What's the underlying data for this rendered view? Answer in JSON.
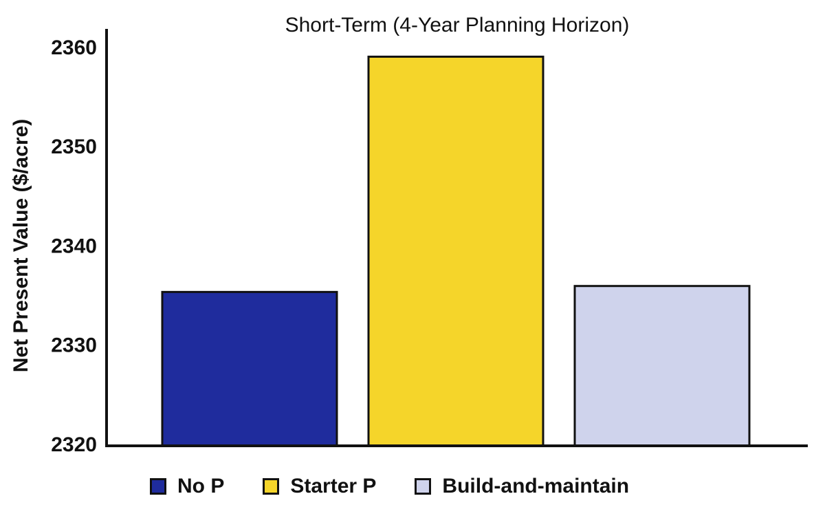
{
  "chart_data": {
    "type": "bar",
    "title": "Short-Term (4-Year Planning Horizon)",
    "xlabel": "",
    "ylabel": "Net Present Value ($/acre)",
    "ylim": [
      2320,
      2362
    ],
    "yticks": [
      2320,
      2330,
      2340,
      2350,
      2360
    ],
    "categories": [
      "No P",
      "Starter P",
      "Build-and-maintain"
    ],
    "values": [
      2335.5,
      2359.2,
      2336.1
    ],
    "colors": [
      "#1f2c9d",
      "#f5d52a",
      "#cfd3ec"
    ],
    "grid": false,
    "legend": "bottom",
    "legend_entries": [
      {
        "label": "No P",
        "color": "#1f2c9d"
      },
      {
        "label": "Starter P",
        "color": "#f5d52a"
      },
      {
        "label": "Build-and-maintain",
        "color": "#cfd3ec"
      }
    ]
  }
}
